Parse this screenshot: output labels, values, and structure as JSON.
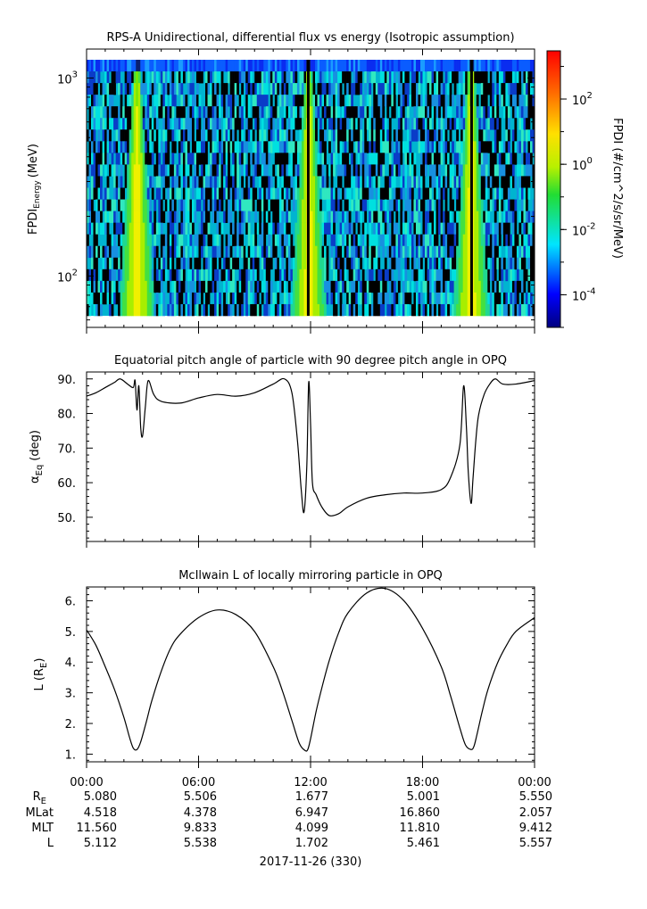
{
  "chart_data": [
    {
      "type": "heatmap",
      "title": "RPS-A Unidirectional, differential flux vs energy (Isotropic assumption)",
      "ylabel_main": "FPDI",
      "ylabel_sub": "Energy",
      "ylabel_unit": "(MeV)",
      "yscale": "log",
      "ylim": [
        55,
        1400
      ],
      "yticks": [
        {
          "value": 100,
          "base": "10",
          "exp": "2"
        },
        {
          "value": 1000,
          "base": "10",
          "exp": "3"
        }
      ],
      "xlim_hours": [
        0,
        24
      ],
      "colorbar": {
        "label": "FPDI (#/cm^2/s/sr/MeV)",
        "scale": "log",
        "range": [
          1e-05,
          3000
        ],
        "ticks": [
          {
            "value": 0.0001,
            "base": "10",
            "exp": "-4"
          },
          {
            "value": 0.01,
            "base": "10",
            "exp": "-2"
          },
          {
            "value": 1,
            "base": "10",
            "exp": "0"
          },
          {
            "value": 100,
            "base": "10",
            "exp": "2"
          }
        ]
      },
      "flux_peaks_hours": [
        2.7,
        11.9,
        20.6
      ]
    },
    {
      "type": "line",
      "title": "Equatorial pitch angle of particle with 90 degree pitch angle in OPQ",
      "ylabel_main": "α",
      "ylabel_sub": "Eq",
      "ylabel_unit": "(deg)",
      "ylim": [
        43,
        92
      ],
      "yticks": [
        "50.",
        "60.",
        "70.",
        "80.",
        "90."
      ],
      "x_hours": [
        0.0,
        0.5,
        1.0,
        1.5,
        1.8,
        2.2,
        2.5,
        2.6,
        2.7,
        2.8,
        2.9,
        3.0,
        3.15,
        3.3,
        3.6,
        4.0,
        5.0,
        6.0,
        7.0,
        8.0,
        9.0,
        10.0,
        10.6,
        11.0,
        11.3,
        11.5,
        11.65,
        11.8,
        11.9,
        12.0,
        12.1,
        12.3,
        12.6,
        13.0,
        13.5,
        14.0,
        15.0,
        16.0,
        17.0,
        18.0,
        19.0,
        19.5,
        20.0,
        20.2,
        20.35,
        20.45,
        20.6,
        20.7,
        20.85,
        21.0,
        21.3,
        21.6,
        21.9,
        22.3,
        23.0,
        24.0
      ],
      "values": [
        85,
        86,
        87.5,
        89,
        90,
        88.5,
        87.5,
        89.5,
        81,
        88,
        76,
        73.5,
        82,
        89.5,
        85.5,
        83.5,
        83,
        84.5,
        85.5,
        85,
        86,
        88.5,
        90,
        86,
        72,
        58,
        51.5,
        65,
        89,
        77,
        60,
        56.5,
        53,
        50.5,
        51,
        53,
        55.5,
        56.5,
        57,
        57,
        58,
        61.5,
        71,
        88,
        76,
        63,
        54,
        61,
        72,
        79.5,
        85.5,
        88.5,
        90,
        88.5,
        88.5,
        89.5
      ]
    },
    {
      "type": "line",
      "title": "McIlwain L of locally mirroring particle in OPQ",
      "ylabel_main": "L (R",
      "ylabel_sub": "E",
      "ylabel_unit": ")",
      "ylim": [
        0.75,
        6.45
      ],
      "yticks": [
        "1.",
        "2.",
        "3.",
        "4.",
        "5.",
        "6."
      ],
      "x_hours": [
        0.0,
        0.5,
        1.0,
        1.5,
        2.0,
        2.3,
        2.5,
        2.7,
        2.9,
        3.2,
        3.5,
        4.0,
        4.5,
        5.0,
        6.0,
        7.0,
        8.0,
        9.0,
        10.0,
        10.5,
        11.0,
        11.4,
        11.7,
        11.85,
        12.0,
        12.3,
        12.6,
        13.0,
        13.5,
        14.0,
        15.0,
        16.0,
        17.0,
        18.0,
        19.0,
        19.5,
        20.0,
        20.3,
        20.6,
        20.75,
        20.9,
        21.2,
        21.5,
        22.0,
        22.5,
        23.0,
        24.0
      ],
      "values": [
        5.05,
        4.55,
        3.85,
        3.1,
        2.2,
        1.55,
        1.2,
        1.15,
        1.4,
        2.05,
        2.75,
        3.7,
        4.45,
        4.9,
        5.45,
        5.7,
        5.55,
        5.0,
        3.85,
        3.05,
        2.1,
        1.35,
        1.12,
        1.15,
        1.5,
        2.4,
        3.15,
        4.05,
        4.95,
        5.6,
        6.25,
        6.4,
        6.0,
        5.1,
        3.85,
        2.9,
        1.85,
        1.3,
        1.15,
        1.25,
        1.6,
        2.4,
        3.1,
        3.95,
        4.55,
        5.0,
        5.45
      ]
    }
  ],
  "x_tick_labels": [
    "00:00",
    "06:00",
    "12:00",
    "18:00",
    "00:00"
  ],
  "ephemeris": {
    "row_labels": [
      "R",
      "MLat",
      "MLT",
      "L"
    ],
    "row_label_sub": "E",
    "columns": [
      [
        "5.080",
        "4.518",
        "11.560",
        "5.112"
      ],
      [
        "5.506",
        "4.378",
        "9.833",
        "5.538"
      ],
      [
        "1.677",
        "6.947",
        "4.099",
        "1.702"
      ],
      [
        "5.001",
        "16.860",
        "11.810",
        "5.461"
      ],
      [
        "5.550",
        "2.057",
        "9.412",
        "5.557"
      ]
    ]
  },
  "date_label": "2017-11-26 (330)"
}
